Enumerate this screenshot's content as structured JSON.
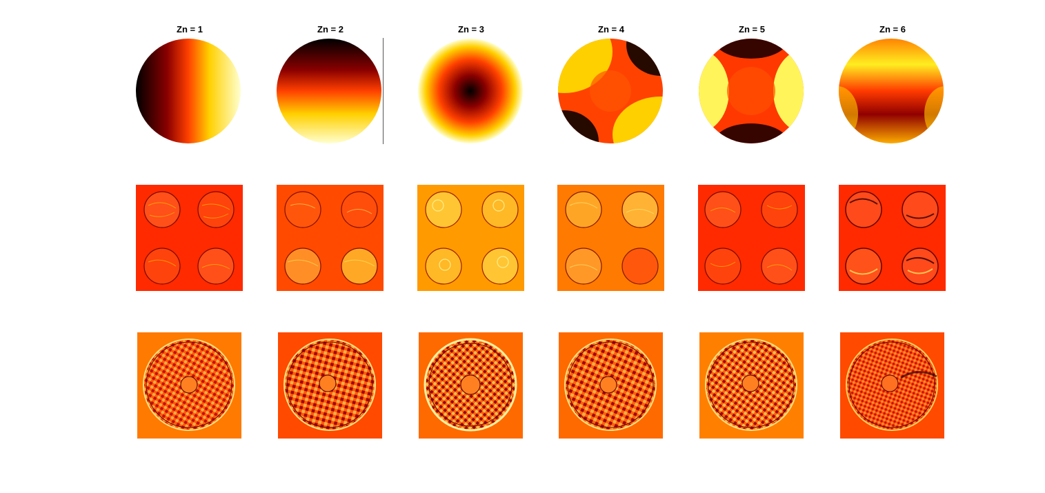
{
  "figure": {
    "columns": [
      {
        "title": "Zn = 1"
      },
      {
        "title": "Zn = 2"
      },
      {
        "title": "Zn = 3"
      },
      {
        "title": "Zn = 4"
      },
      {
        "title": "Zn = 5"
      },
      {
        "title": "Zn = 6"
      }
    ],
    "colormap": "hot",
    "colors": {
      "black": "#000000",
      "dark_red": "#7a0000",
      "red": "#ff2a00",
      "orange_red": "#ff4a00",
      "orange": "#ff7a00",
      "amber": "#ff9a00",
      "yellow": "#ffff00",
      "pale_yellow": "#ffffc0",
      "background": "#ffffff"
    },
    "rows": [
      {
        "kind": "zernike-phase-disk"
      },
      {
        "kind": "four-pupil-intensity"
      },
      {
        "kind": "ring-interferogram"
      }
    ]
  }
}
